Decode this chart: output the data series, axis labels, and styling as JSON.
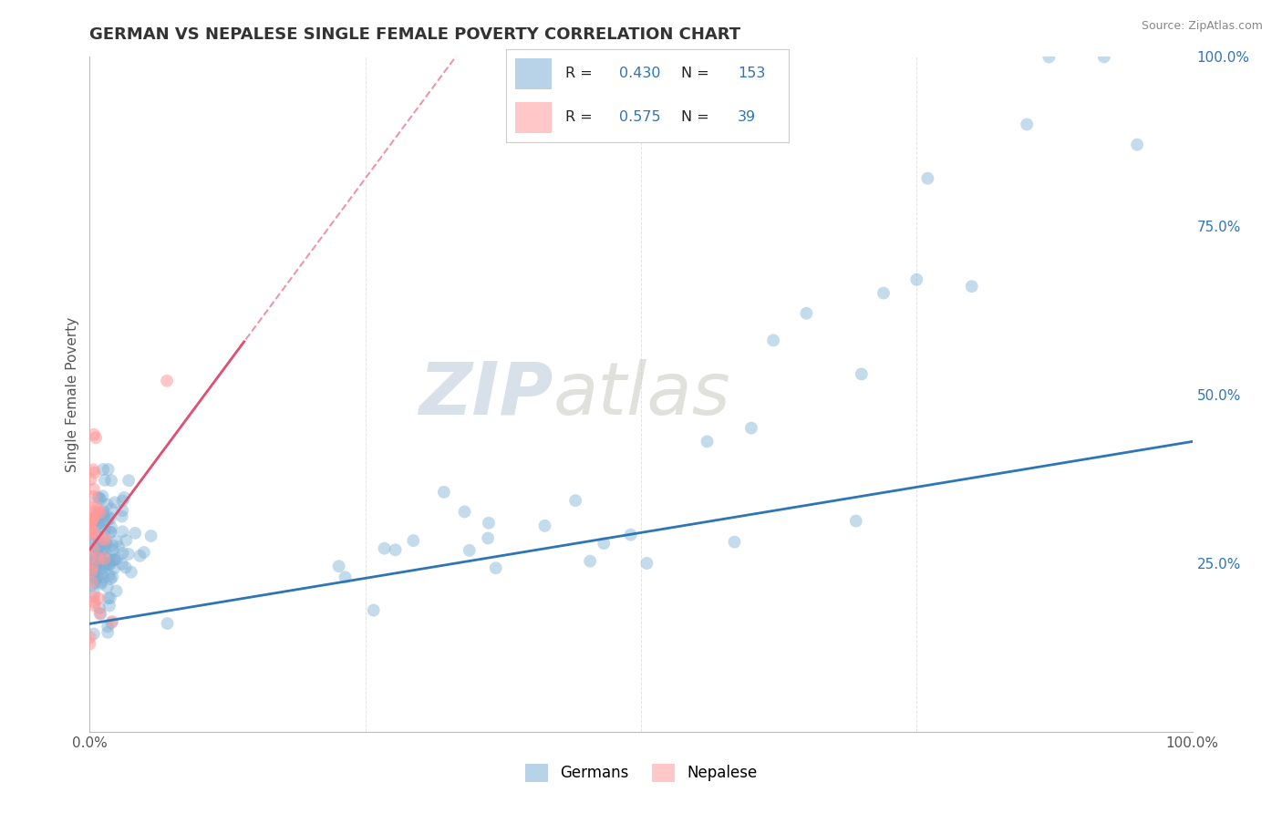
{
  "title": "GERMAN VS NEPALESE SINGLE FEMALE POVERTY CORRELATION CHART",
  "source": "Source: ZipAtlas.com",
  "ylabel": "Single Female Poverty",
  "watermark_zip": "ZIP",
  "watermark_atlas": "atlas",
  "german_R": 0.43,
  "german_N": 153,
  "nepalese_R": 0.575,
  "nepalese_N": 39,
  "xlim": [
    0,
    1
  ],
  "ylim": [
    0,
    1
  ],
  "german_color": "#7EB0D5",
  "nepalese_color": "#FF9999",
  "german_line_color": "#2E75B6",
  "nepalese_line_color": "#E05070",
  "background_color": "#FFFFFF",
  "title_color": "#333333",
  "title_fontsize": 13,
  "stat_value_color": "#2E75B6",
  "right_tick_color": "#2E75B6",
  "grid_color": "#DDDDDD"
}
